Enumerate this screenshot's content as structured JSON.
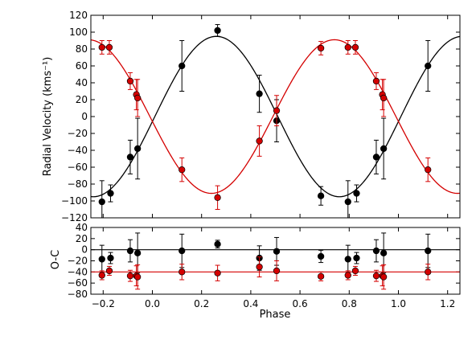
{
  "chart_data": [
    {
      "type": "scatter",
      "name": "radial-velocity",
      "ylabel": "Radial Velocity (kms⁻¹)",
      "xlim": [
        -0.25,
        1.25
      ],
      "ylim": [
        -120,
        120
      ],
      "yticks": [
        -120,
        -100,
        -80,
        -60,
        -40,
        -20,
        0,
        20,
        40,
        60,
        80,
        100,
        120
      ],
      "yticklabels": [
        "−120",
        "−100",
        "−80",
        "−60",
        "−40",
        "−20",
        "0",
        "20",
        "40",
        "60",
        "80",
        "100",
        "120"
      ],
      "grid": false,
      "series": [
        {
          "color": "#000000",
          "model": {
            "type": "sinusoid",
            "gamma": 0,
            "K": 95,
            "peak_phase": 0.26
          },
          "points": [
            {
              "x": -0.205,
              "y": -101,
              "err": 25
            },
            {
              "x": -0.17,
              "y": -91,
              "err": 10
            },
            {
              "x": -0.09,
              "y": -48,
              "err": 20
            },
            {
              "x": -0.06,
              "y": -38,
              "err": 36
            },
            {
              "x": 0.12,
              "y": 60,
              "err": 30
            },
            {
              "x": 0.265,
              "y": 102,
              "err": 7
            },
            {
              "x": 0.435,
              "y": 27,
              "err": 22
            },
            {
              "x": 0.505,
              "y": -5,
              "err": 25
            },
            {
              "x": 0.685,
              "y": -94,
              "err": 11
            },
            {
              "x": 0.795,
              "y": -101,
              "err": 25
            },
            {
              "x": 0.83,
              "y": -91,
              "err": 10
            },
            {
              "x": 0.91,
              "y": -48,
              "err": 20
            },
            {
              "x": 0.94,
              "y": -38,
              "err": 36
            },
            {
              "x": 1.12,
              "y": 60,
              "err": 30
            }
          ]
        },
        {
          "color": "#d40000",
          "model": {
            "type": "sinusoid",
            "gamma": 0,
            "K": 91,
            "peak_phase": 0.74
          },
          "points": [
            {
              "x": -0.205,
              "y": 82,
              "err": 8
            },
            {
              "x": -0.175,
              "y": 82,
              "err": 8
            },
            {
              "x": -0.09,
              "y": 42,
              "err": 10
            },
            {
              "x": -0.065,
              "y": 26,
              "err": 18
            },
            {
              "x": -0.06,
              "y": 22,
              "err": 22
            },
            {
              "x": 0.12,
              "y": -63,
              "err": 14
            },
            {
              "x": 0.265,
              "y": -96,
              "err": 14
            },
            {
              "x": 0.435,
              "y": -29,
              "err": 18
            },
            {
              "x": 0.505,
              "y": 7,
              "err": 18
            },
            {
              "x": 0.685,
              "y": 81,
              "err": 8
            },
            {
              "x": 0.795,
              "y": 82,
              "err": 8
            },
            {
              "x": 0.825,
              "y": 82,
              "err": 8
            },
            {
              "x": 0.91,
              "y": 42,
              "err": 10
            },
            {
              "x": 0.935,
              "y": 26,
              "err": 18
            },
            {
              "x": 0.94,
              "y": 22,
              "err": 22
            },
            {
              "x": 1.12,
              "y": -63,
              "err": 14
            }
          ]
        }
      ]
    },
    {
      "type": "scatter",
      "name": "residuals",
      "xlabel": "Phase",
      "ylabel": "O-C",
      "xlim": [
        -0.25,
        1.25
      ],
      "ylim": [
        -80,
        40
      ],
      "xticks": [
        -0.2,
        0.0,
        0.2,
        0.4,
        0.6,
        0.8,
        1.0,
        1.2
      ],
      "xticklabels": [
        "−0.2",
        "0.0",
        "0.2",
        "0.4",
        "0.6",
        "0.8",
        "1.0",
        "1.2"
      ],
      "yticks": [
        -80,
        -60,
        -40,
        -20,
        0,
        20,
        40
      ],
      "yticklabels": [
        "−80",
        "−60",
        "−40",
        "−20",
        "0",
        "20",
        "40"
      ],
      "grid": false,
      "series": [
        {
          "color": "#000000",
          "reference_line": 0,
          "points": [
            {
              "x": -0.205,
              "y": -17,
              "err": 25
            },
            {
              "x": -0.17,
              "y": -15,
              "err": 10
            },
            {
              "x": -0.09,
              "y": -2,
              "err": 20
            },
            {
              "x": -0.06,
              "y": -6,
              "err": 36
            },
            {
              "x": 0.12,
              "y": -2,
              "err": 30
            },
            {
              "x": 0.265,
              "y": 10,
              "err": 7
            },
            {
              "x": 0.435,
              "y": -15,
              "err": 22
            },
            {
              "x": 0.505,
              "y": -3,
              "err": 25
            },
            {
              "x": 0.685,
              "y": -12,
              "err": 11
            },
            {
              "x": 0.795,
              "y": -17,
              "err": 25
            },
            {
              "x": 0.83,
              "y": -15,
              "err": 10
            },
            {
              "x": 0.91,
              "y": -2,
              "err": 20
            },
            {
              "x": 0.94,
              "y": -6,
              "err": 36
            },
            {
              "x": 1.12,
              "y": -2,
              "err": 30
            }
          ]
        },
        {
          "color": "#d40000",
          "reference_line": -40,
          "points": [
            {
              "x": -0.205,
              "y": -46,
              "err": 8
            },
            {
              "x": -0.175,
              "y": -38,
              "err": 8
            },
            {
              "x": -0.09,
              "y": -47,
              "err": 10
            },
            {
              "x": -0.065,
              "y": -47,
              "err": 18
            },
            {
              "x": -0.06,
              "y": -49,
              "err": 22
            },
            {
              "x": 0.12,
              "y": -40,
              "err": 14
            },
            {
              "x": 0.265,
              "y": -42,
              "err": 14
            },
            {
              "x": 0.435,
              "y": -31,
              "err": 18
            },
            {
              "x": 0.505,
              "y": -38,
              "err": 18
            },
            {
              "x": 0.685,
              "y": -48,
              "err": 8
            },
            {
              "x": 0.795,
              "y": -46,
              "err": 8
            },
            {
              "x": 0.825,
              "y": -38,
              "err": 8
            },
            {
              "x": 0.91,
              "y": -47,
              "err": 10
            },
            {
              "x": 0.935,
              "y": -47,
              "err": 18
            },
            {
              "x": 0.94,
              "y": -49,
              "err": 22
            },
            {
              "x": 1.12,
              "y": -40,
              "err": 14
            }
          ]
        }
      ]
    }
  ]
}
